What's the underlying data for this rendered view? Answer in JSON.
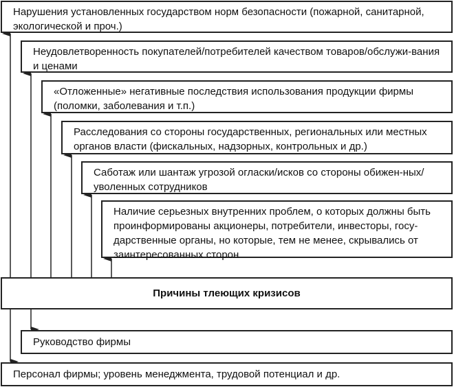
{
  "diagram": {
    "title": "Причины тлеющих кризисов",
    "effects": [
      "Нарушения установленных государством норм безопасности (пожарной, санитарной, экологической и проч.)",
      "Неудовлетворенность покупателей/потребителей качеством товаров/обслужи-вания и ценами",
      "«Отложенные» негативные последствия использования продукции фирмы (поломки, заболевания и т.п.)",
      "Расследования со стороны государственных, региональных или местных органов власти (фискальных, надзорных, контрольных и др.)",
      "Саботаж или шантаж угрозой огласки/исков со стороны обижен-ных/уволенных сотрудников",
      "Наличие серьезных внутренних проблем, о которых должны быть проинформированы акционеры, потребители, инвесторы, госу-дарственные органы, но которые, тем не менее, скрывались от заинтересованных сторон"
    ],
    "sources": [
      "Руководство фирмы",
      "Персонал фирмы; уровень менеджмента, трудовой потенциал и др."
    ]
  }
}
